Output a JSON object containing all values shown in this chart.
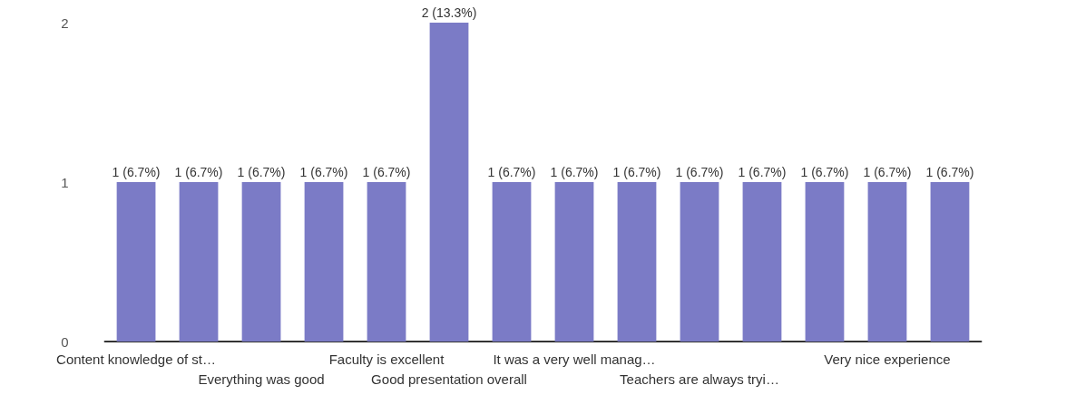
{
  "chart_data": {
    "type": "bar",
    "categories": [
      "Content knowledge of st…",
      null,
      "Everything was good",
      null,
      "Faculty is excellent",
      "Good presentation overall",
      null,
      "It was a very well manag…",
      null,
      "Teachers are always tryi…",
      null,
      null,
      "Very nice experience",
      null
    ],
    "values": [
      1,
      1,
      1,
      1,
      1,
      2,
      1,
      1,
      1,
      1,
      1,
      1,
      1,
      1
    ],
    "value_labels": [
      "1 (6.7%)",
      "1 (6.7%)",
      "1 (6.7%)",
      "1 (6.7%)",
      "1 (6.7%)",
      "2 (13.3%)",
      "1 (6.7%)",
      "1 (6.7%)",
      "1 (6.7%)",
      "1 (6.7%)",
      "1 (6.7%)",
      "1 (6.7%)",
      "1 (6.7%)",
      "1 (6.7%)"
    ],
    "color": "#7b7bc6",
    "ylim": [
      0,
      2
    ],
    "yticks": [
      0,
      1,
      2
    ],
    "grid": false
  }
}
